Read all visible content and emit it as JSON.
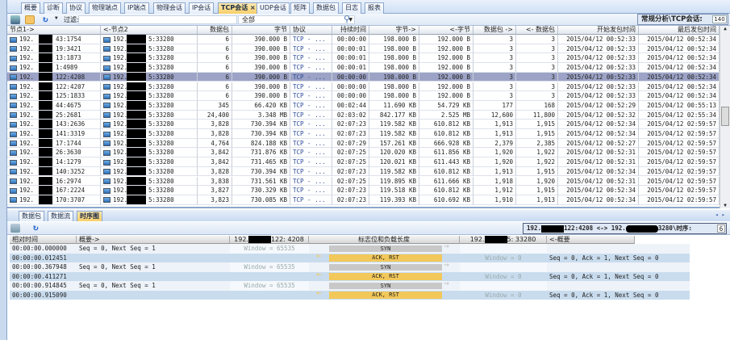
{
  "tabs": [
    "概要",
    "诊断",
    "协议",
    "物理端点",
    "IP端点",
    "物理会话",
    "IP会话",
    "TCP会话",
    "UDP会话",
    "矩阵",
    "数据包",
    "日志",
    "报表"
  ],
  "active_tab": "TCP会话",
  "toolbar": {
    "filter_label": "过滤:",
    "filter_value": "",
    "combo_value": "全部",
    "breadcrumb": "常规分析\\TCP会话:",
    "count": "140"
  },
  "grid": {
    "columns": [
      "节点1->",
      "<-节点2",
      "数据包",
      "字节",
      "协议",
      "持续时间",
      "字节->",
      "<-字节",
      "数据包 ->",
      "<- 数据包",
      "开始发包时间",
      "最后发包时间"
    ],
    "selected_index": 4,
    "rows": [
      [
        "192.",
        "43:1754",
        "192.",
        "5:33280",
        "6",
        "390.000 B",
        "TCP - ...",
        "00:00:00",
        "198.000 B",
        "192.000 B",
        "3",
        "3",
        "2015/04/12 00:52:33",
        "2015/04/12 00:52:34"
      ],
      [
        "192.",
        "19:3421",
        "192.",
        "5:33280",
        "6",
        "390.000 B",
        "TCP - ...",
        "00:00:01",
        "198.000 B",
        "192.000 B",
        "3",
        "3",
        "2015/04/12 00:52:33",
        "2015/04/12 00:52:34"
      ],
      [
        "192.",
        "13:1873",
        "192.",
        "5:33280",
        "6",
        "390.000 B",
        "TCP - ...",
        "00:00:01",
        "198.000 B",
        "192.000 B",
        "3",
        "3",
        "2015/04/12 00:52:33",
        "2015/04/12 00:52:34"
      ],
      [
        "192.",
        "1:4989",
        "192.",
        "5:33280",
        "6",
        "390.000 B",
        "TCP - ...",
        "00:00:01",
        "198.000 B",
        "192.000 B",
        "3",
        "3",
        "2015/04/12 00:52:33",
        "2015/04/12 00:52:34"
      ],
      [
        "192.",
        "122:4208",
        "192.",
        "5:33280",
        "6",
        "390.000 B",
        "TCP - ...",
        "00:00:00",
        "198.000 B",
        "192.000 B",
        "3",
        "3",
        "2015/04/12 00:52:33",
        "2015/04/12 00:52:34"
      ],
      [
        "192.",
        "122:4207",
        "192.",
        "5:33280",
        "6",
        "390.000 B",
        "TCP - ...",
        "00:00:00",
        "198.000 B",
        "192.000 B",
        "3",
        "3",
        "2015/04/12 00:52:33",
        "2015/04/12 00:52:34"
      ],
      [
        "192.",
        "125:1833",
        "192.",
        "5:33280",
        "6",
        "390.000 B",
        "TCP - ...",
        "00:00:00",
        "198.000 B",
        "192.000 B",
        "3",
        "3",
        "2015/04/12 00:52:33",
        "2015/04/12 00:52:34"
      ],
      [
        "192.",
        "44:4675",
        "192.",
        "5:33280",
        "345",
        "66.420 KB",
        "TCP - ...",
        "00:02:44",
        "11.690 KB",
        "54.729 KB",
        "177",
        "168",
        "2015/04/12 00:52:29",
        "2015/04/12 00:55:13"
      ],
      [
        "192.",
        "25:2681",
        "192.",
        "5:33280",
        "24,400",
        "3.348 MB",
        "TCP - ...",
        "02:03:02",
        "842.177 KB",
        "2.525 MB",
        "12,600",
        "11,800",
        "2015/04/12 00:52:32",
        "2015/04/12 02:55:34"
      ],
      [
        "192.",
        "143:2636",
        "192.",
        "5:33280",
        "3,828",
        "730.394 KB",
        "TCP - ...",
        "02:07:23",
        "119.582 KB",
        "610.812 KB",
        "1,913",
        "1,915",
        "2015/04/12 00:52:34",
        "2015/04/12 02:59:57"
      ],
      [
        "192.",
        "141:3319",
        "192.",
        "5:33280",
        "3,828",
        "730.394 KB",
        "TCP - ...",
        "02:07:23",
        "119.582 KB",
        "610.812 KB",
        "1,913",
        "1,915",
        "2015/04/12 00:52:34",
        "2015/04/12 02:59:57"
      ],
      [
        "192.",
        "17:1744",
        "192.",
        "5:33280",
        "4,764",
        "824.188 KB",
        "TCP - ...",
        "02:07:29",
        "157.261 KB",
        "666.928 KB",
        "2,379",
        "2,385",
        "2015/04/12 00:52:27",
        "2015/04/12 02:59:57"
      ],
      [
        "192.",
        "26:3630",
        "192.",
        "5:33280",
        "3,842",
        "731.876 KB",
        "TCP - ...",
        "02:07:25",
        "120.020 KB",
        "611.856 KB",
        "1,920",
        "1,922",
        "2015/04/12 00:52:31",
        "2015/04/12 02:59:57"
      ],
      [
        "192.",
        "14:1279",
        "192.",
        "5:33280",
        "3,842",
        "731.465 KB",
        "TCP - ...",
        "02:07:25",
        "120.021 KB",
        "611.443 KB",
        "1,920",
        "1,922",
        "2015/04/12 00:52:31",
        "2015/04/12 02:59:57"
      ],
      [
        "192.",
        "140:3252",
        "192.",
        "5:33280",
        "3,828",
        "730.394 KB",
        "TCP - ...",
        "02:07:23",
        "119.582 KB",
        "610.812 KB",
        "1,913",
        "1,915",
        "2015/04/12 00:52:34",
        "2015/04/12 02:59:57"
      ],
      [
        "192.",
        "16:2974",
        "192.",
        "5:33280",
        "3,838",
        "731.561 KB",
        "TCP - ...",
        "02:07:25",
        "119.895 KB",
        "611.666 KB",
        "1,918",
        "1,920",
        "2015/04/12 00:52:31",
        "2015/04/12 02:59:57"
      ],
      [
        "192.",
        "167:2224",
        "192.",
        "5:33280",
        "3,827",
        "730.329 KB",
        "TCP - ...",
        "02:07:23",
        "119.518 KB",
        "610.812 KB",
        "1,912",
        "1,915",
        "2015/04/12 00:52:34",
        "2015/04/12 02:59:57"
      ],
      [
        "192.",
        "170:3707",
        "192.",
        "5:33280",
        "3,823",
        "730.085 KB",
        "TCP - ...",
        "02:07:23",
        "119.393 KB",
        "610.692 KB",
        "1,910",
        "1,913",
        "2015/04/12 00:52:34",
        "2015/04/12 02:59:57"
      ]
    ]
  },
  "bottom_tabs": [
    "数据包",
    "数据流",
    "时序图"
  ],
  "bottom_active": "时序图",
  "pair": {
    "left_a": "192.",
    "left_b": "122:4208 <-> 192.",
    "right": "3280\\时序:",
    "count": "6"
  },
  "sequence": {
    "headers": [
      "相对时间",
      "概要->",
      "192.",
      "122: 4208",
      "标志位和负载长度",
      "192.",
      "5: 33280",
      "<-概要"
    ],
    "rows": [
      {
        "time": "00:00:00.000000",
        "summary": "Seq = 0, Next Seq = 1",
        "left": "Window = 65535",
        "flags": "SYN",
        "dir": "right",
        "right": "",
        "summary2": ""
      },
      {
        "time": "00:00:00.012451",
        "summary": "",
        "left": "",
        "flags": "ACK, RST",
        "dir": "left",
        "right": "Window = 0",
        "summary2": "Seq = 0, Ack = 1, Next Seq = 0"
      },
      {
        "time": "00:00:00.367948",
        "summary": "Seq = 0, Next Seq = 1",
        "left": "Window = 65535",
        "flags": "SYN",
        "dir": "right",
        "right": "",
        "summary2": ""
      },
      {
        "time": "00:00:00.411271",
        "summary": "",
        "left": "",
        "flags": "ACK, RST",
        "dir": "left",
        "right": "Window = 0",
        "summary2": "Seq = 0, Ack = 1, Next Seq = 0"
      },
      {
        "time": "00:00:00.914845",
        "summary": "Seq = 0, Next Seq = 1",
        "left": "Window = 65535",
        "flags": "SYN",
        "dir": "right",
        "right": "",
        "summary2": ""
      },
      {
        "time": "00:00:00.915090",
        "summary": "",
        "left": "",
        "flags": "ACK, RST",
        "dir": "left",
        "right": "Window = 0",
        "summary2": "Seq = 0, Ack = 1, Next Seq = 0"
      }
    ]
  },
  "colors": {
    "selected_row": "#9da3c6",
    "syn": "#c8c8c8",
    "ack_rst": "#f2c85a",
    "arrow_right": "#c0c0c0",
    "arrow_left": "#f2c85a",
    "active_tab": "#f8cf6a"
  }
}
